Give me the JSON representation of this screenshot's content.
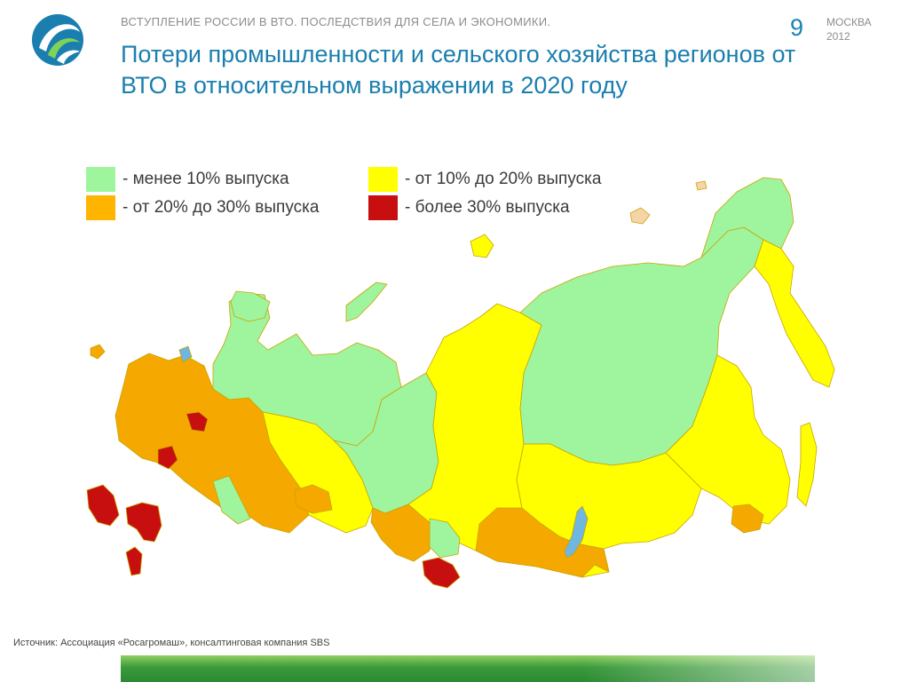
{
  "header": {
    "caption": "ВСТУПЛЕНИЕ РОССИИ В ВТО. ПОСЛЕДСТВИЯ ДЛЯ СЕЛА И ЭКОНОМИКИ.",
    "page_number": "9",
    "city": "МОСКВА",
    "year": "2012"
  },
  "title": "Потери промышленности и сельского хозяйства регионов от ВТО в относительном выражении в 2020 году",
  "legend": [
    {
      "label": "- менее 10% выпуска",
      "color": "#9ef59e"
    },
    {
      "label": "- от 10% до 20% выпуска",
      "color": "#ffff00"
    },
    {
      "label": "- от 20% до 30% выпуска",
      "color": "#ffb400"
    },
    {
      "label": "- более 30% выпуска",
      "color": "#c80f0f"
    }
  ],
  "map": {
    "colors": {
      "green": "#9ef59e",
      "yellow": "#ffff00",
      "orange": "#f5a800",
      "red": "#c80f0f",
      "water": "#6fb6e0",
      "islands": "#f5d5a8"
    }
  },
  "source": "Источник: Ассоциация «Росагромаш», консалтинговая компания SBS"
}
